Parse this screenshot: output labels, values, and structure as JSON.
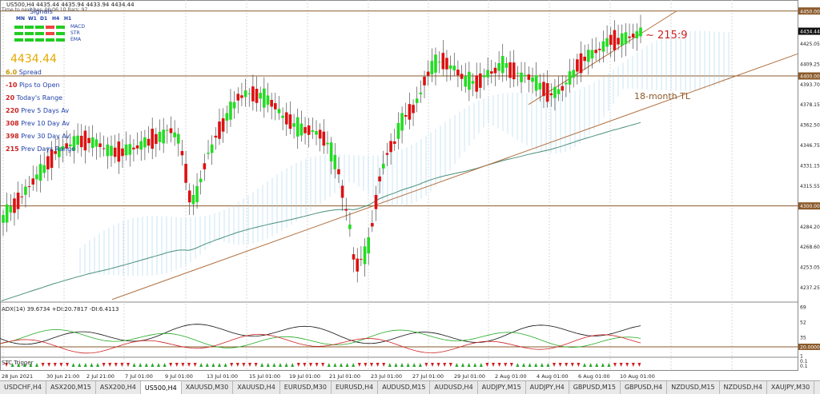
{
  "header": {
    "symbol_line": "US500,H4  4435.44 4435.94 4433.94 4434.44",
    "trend_line": "Time to next bar: 00:06:10  Bars: 97",
    "signals": "Signals"
  },
  "signals_panel": {
    "timeframes": [
      "MN",
      "W1",
      "D1",
      "H4",
      "H1"
    ],
    "indicators": [
      "MACD",
      "STR",
      "EMA"
    ],
    "rows": [
      [
        "#22cc22",
        "#22cc22",
        "#22cc22",
        "#ee4444",
        "#22cc22"
      ],
      [
        "#22cc22",
        "#22cc22",
        "#22cc22",
        "#ee4444",
        "#22cc22"
      ],
      [
        "#22cc22",
        "#22cc22",
        "#22cc22",
        "#22cc22",
        "#22cc22"
      ]
    ]
  },
  "info": {
    "price": "4434.44",
    "lines": [
      {
        "num": "6.0",
        "label": "Spread",
        "color": "#c79a00"
      },
      {
        "num": "-10",
        "label": "Pips to Open",
        "color": "#cc2222"
      },
      {
        "num": "20",
        "label": "Today's Range",
        "color": "#cc2222"
      },
      {
        "num": "220",
        "label": "Prev 5 Days Av",
        "color": "#cc2222"
      },
      {
        "num": "308",
        "label": "Prev 10 Day Av",
        "color": "#cc2222"
      },
      {
        "num": "398",
        "label": "Prev 30 Day Av",
        "color": "#cc2222"
      },
      {
        "num": "215",
        "label": "Prev Days Range",
        "color": "#cc2222"
      }
    ],
    "label_color": "#1f3fa8"
  },
  "annotations": {
    "ratio": "~ 215:9",
    "trendline": "18-month TL"
  },
  "price_axis": {
    "ticks": [
      "4450.00",
      "4434.44",
      "4425.05",
      "4409.25",
      "4400.00",
      "4393.70",
      "4378.15",
      "4362.50",
      "4346.75",
      "4331.15",
      "4315.55",
      "4300.00",
      "4284.20",
      "4268.60",
      "4253.05",
      "4237.25"
    ],
    "highlight_current": "4434.44",
    "highlight_levels": [
      "4450.00",
      "4400.00",
      "4300.00"
    ]
  },
  "adx": {
    "label": "ADX(14) 39.6734 +DI:20.7817 -DI:6.4113",
    "ticks": [
      "69",
      "52",
      "35",
      "20.0000",
      "1"
    ],
    "level": "20.0000"
  },
  "stc": {
    "label": "STC Trigger",
    "ticks": [
      "0.1",
      "0.1"
    ]
  },
  "time_axis": [
    "28 Jun 2021",
    "30 Jun 21:00",
    "2 Jul 21:00",
    "7 Jul 01:00",
    "9 Jul 01:00",
    "13 Jul 01:00",
    "15 Jul 01:00",
    "19 Jul 01:00",
    "21 Jul 01:00",
    "23 Jul 01:00",
    "27 Jul 01:00",
    "29 Jul 01:00",
    "2 Aug 01:00",
    "4 Aug 01:00",
    "6 Aug 01:00",
    "10 Aug 01:00"
  ],
  "tabs": [
    "USDCHF,H4",
    "ASX200,M15",
    "ASX200,H4",
    "US500,H4",
    "XAUUSD,M30",
    "XAUUSD,H4",
    "EURUSD,M30",
    "EURUSD,H4",
    "AUDUSD,M15",
    "AUDUSD,H4",
    "AUDJPY,M15",
    "AUDJPY,H4",
    "GBPUSD,M15",
    "GBPUSD,H4",
    "NZDUSD,M15",
    "NZDUSD,H4",
    "XAUJPY,M30"
  ],
  "active_tab": "US500,H4",
  "colors": {
    "bull": "#22dd22",
    "bear": "#dd1111",
    "level": "#8b5a2b",
    "ema": "#4a8f7a",
    "cloud": "#9fd0f0"
  },
  "chart_data": {
    "type": "candlestick",
    "y_range": [
      4226,
      4456
    ],
    "series": [
      {
        "name": "US500,H4",
        "values": [
          4290,
          4294.2,
          4297.3,
          4300.2,
          4303.9,
          4307.1,
          4311.7,
          4315.1,
          4318.8,
          4322.3,
          4325.8,
          4328.4,
          4333.2,
          4336.4,
          4341.1,
          4341.3,
          4344.6,
          4346.2,
          4346.6,
          4348.1,
          4350.6,
          4349.6,
          4350.3,
          4350.3,
          4348.7,
          4348.4,
          4346.7,
          4344.1,
          4342.8,
          4342.4,
          4341.3,
          4341.8,
          4341.3,
          4343.1,
          4343.5,
          4344.2,
          4345.4,
          4346.6,
          4348.9,
          4349,
          4351.7,
          4351.5,
          4353.1,
          4353.4,
          4358.2,
          4357.9,
          4354.7,
          4351.7,
          4340.6,
          4325.1,
          4307.3,
          4304.9,
          4309.1,
          4319.6,
          4330.5,
          4340.4,
          4344,
          4353.3,
          4358.3,
          4362.3,
          4368.5,
          4373.3,
          4377.5,
          4383.7,
          4384.1,
          4386.3,
          4386.4,
          4386.2,
          4384.7,
          4384.8,
          4383,
          4381.4,
          4379,
          4376.7,
          4373,
          4368.6,
          4367.4,
          4364.9,
          4362.3,
          4360.8,
          4358.8,
          4358.3,
          4358.3,
          4357.6,
          4356.2,
          4355.2,
          4351.8,
          4348,
          4341.6,
          4333.7,
          4326.3,
          4310.9,
          4297,
          4283.9,
          4260.8,
          4254.5,
          4259,
          4262,
          4269.7,
          4285.5,
          4303,
          4320.8,
          4330.6,
          4340,
          4345.7,
          4348.7,
          4357.7,
          4364.7,
          4369.3,
          4372.4,
          4374.6,
          4380.9,
          4386.6,
          4396.1,
          4401.8,
          4406.4,
          4409.5,
          4410.7,
          4411.5,
          4409.5,
          4406.8,
          4406.1,
          4402.7,
          4399.7,
          4395.9,
          4396.3,
          4395.1,
          4394.2,
          4396.4,
          4399.8,
          4401.8,
          4402.7,
          4404.2,
          4406.9,
          4408.8,
          4408.1,
          4404.5,
          4403.9,
          4402.2,
          4398.9,
          4400.3,
          4399.1,
          4397.2,
          4394.6,
          4392.1,
          4390,
          4387.3,
          4385.9,
          4387.3,
          4387.9,
          4390.5,
          4394.2,
          4398.5,
          4401.7,
          4408.1,
          4409.8,
          4413.2,
          4415.5,
          4416.7,
          4418.9,
          4420.4,
          4422.7,
          4425.8,
          4427.8,
          4427.6,
          4426.8,
          4428.1,
          4429.1,
          4429.8,
          4431.1,
          4431.7,
          4433.9
        ]
      }
    ]
  }
}
